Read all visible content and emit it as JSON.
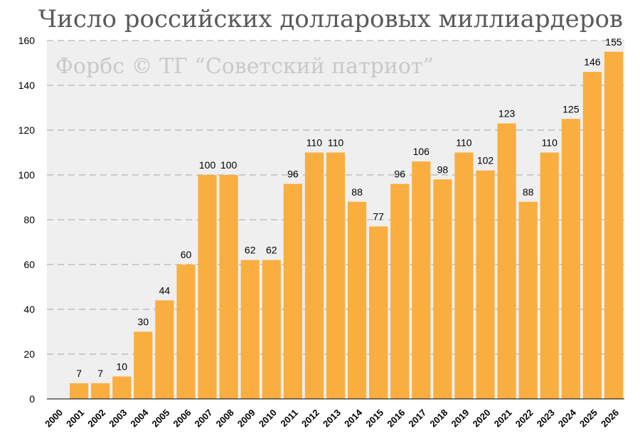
{
  "chart_data": {
    "type": "bar",
    "title": "Число российских долларовых миллиардеров",
    "subtitle": "Форбс © ТГ “Советский патриот”",
    "xlabel": "",
    "ylabel": "",
    "ylim": [
      0,
      160
    ],
    "yticks": [
      0,
      20,
      40,
      60,
      80,
      100,
      120,
      140,
      160
    ],
    "grid": true,
    "categories": [
      "2000",
      "2001",
      "2002",
      "2003",
      "2004",
      "2005",
      "2006",
      "2007",
      "2008",
      "2009",
      "2010",
      "2011",
      "2012",
      "2013",
      "2014",
      "2015",
      "2016",
      "2017",
      "2018",
      "2019",
      "2020",
      "2021",
      "2022",
      "2023",
      "2024",
      "2025",
      "2026"
    ],
    "values": [
      0,
      7,
      7,
      10,
      30,
      44,
      60,
      100,
      100,
      62,
      62,
      96,
      110,
      110,
      88,
      77,
      96,
      106,
      98,
      110,
      102,
      123,
      88,
      110,
      125,
      146,
      155
    ],
    "data_labels": [
      null,
      "7",
      "7",
      "10",
      "30",
      "44",
      "60",
      "100",
      "100",
      "62",
      "62",
      "96",
      "110",
      "110",
      "88",
      "77",
      "96",
      "106",
      "98",
      "110",
      "102",
      "123",
      "88",
      "110",
      "125",
      "146",
      "155"
    ],
    "colors": {
      "bar": "#F9AE3F",
      "plot_background": "#EFEFEF",
      "grid": "#A6A6A6",
      "title": "#595959",
      "watermark": "#C9C9C9",
      "text": "#000000"
    }
  }
}
